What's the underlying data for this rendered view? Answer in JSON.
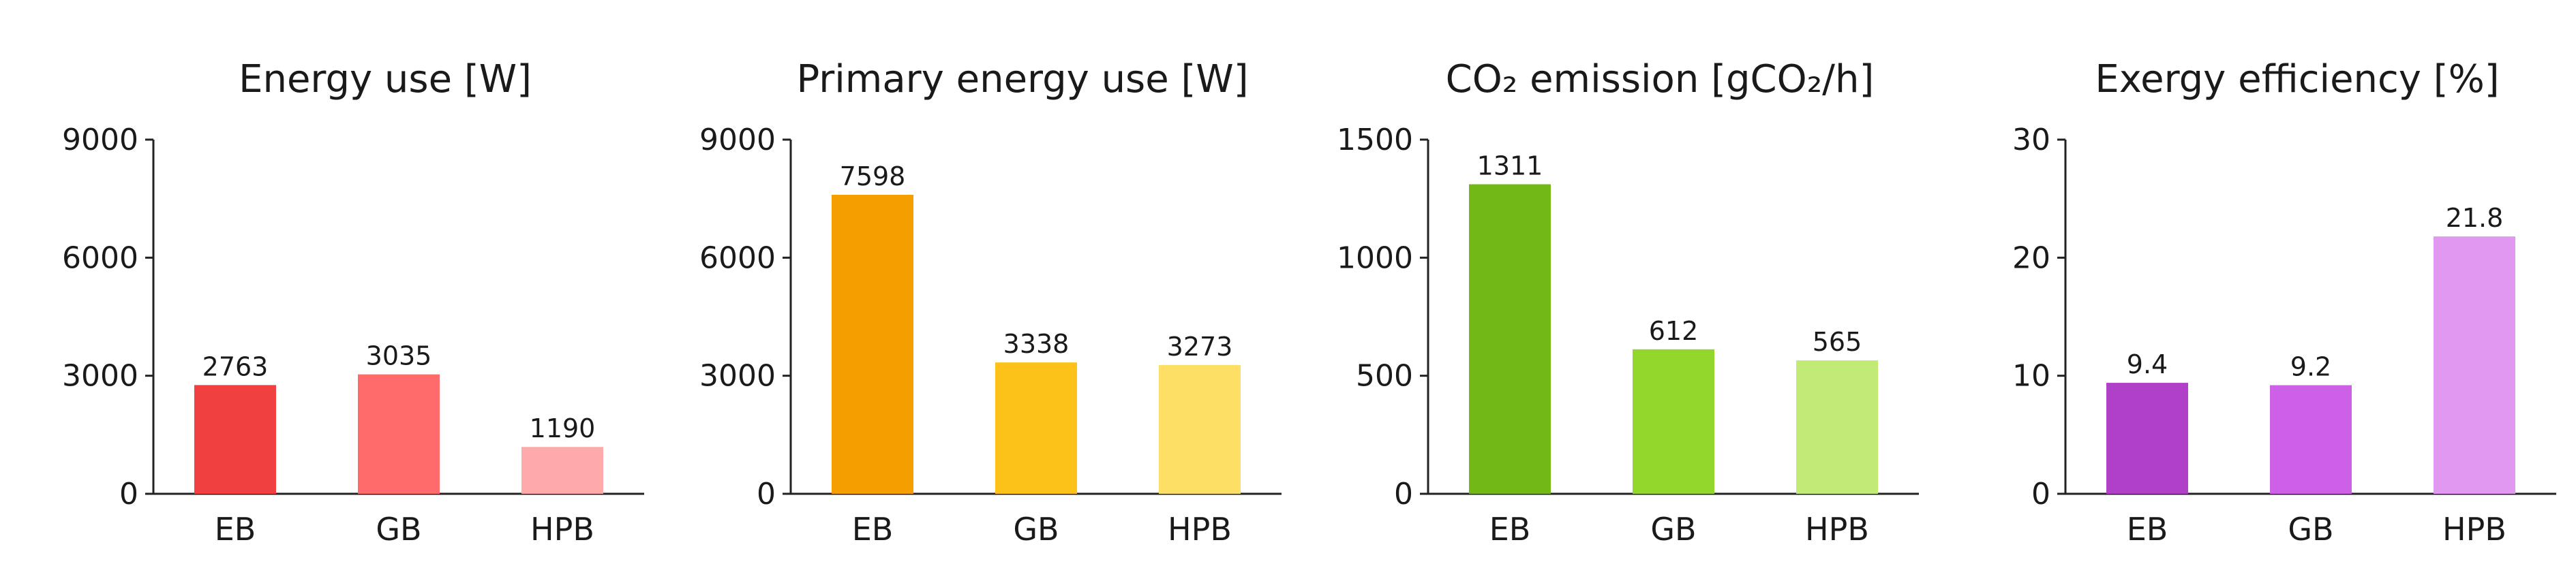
{
  "chart_data": [
    {
      "type": "bar",
      "title": "Energy use [W]",
      "categories": [
        "EB",
        "GB",
        "HPB"
      ],
      "values": [
        2763,
        3035,
        1190
      ],
      "value_labels": [
        "2763",
        "3035",
        "1190"
      ],
      "ylim": [
        0,
        9000
      ],
      "yticks": [
        "0",
        "3000",
        "6000",
        "9000"
      ],
      "colors": [
        "#f04040",
        "#ff6a6a",
        "#ffaaaa"
      ],
      "grid": false
    },
    {
      "type": "bar",
      "title": "Primary energy use [W]",
      "categories": [
        "EB",
        "GB",
        "HPB"
      ],
      "values": [
        7598,
        3338,
        3273
      ],
      "value_labels": [
        "7598",
        "3338",
        "3273"
      ],
      "ylim": [
        0,
        9000
      ],
      "yticks": [
        "0",
        "3000",
        "6000",
        "9000"
      ],
      "colors": [
        "#f59e00",
        "#fcc21a",
        "#fddf66"
      ],
      "grid": false
    },
    {
      "type": "bar",
      "title": "CO₂ emission [gCO₂/h]",
      "categories": [
        "EB",
        "GB",
        "HPB"
      ],
      "values": [
        1311,
        612,
        565
      ],
      "value_labels": [
        "1311",
        "612",
        "565"
      ],
      "ylim": [
        0,
        1500
      ],
      "yticks": [
        "0",
        "500",
        "1000",
        "1500"
      ],
      "colors": [
        "#72b817",
        "#93d62c",
        "#c2ea76"
      ],
      "grid": false
    },
    {
      "type": "bar",
      "title": "Exergy efficiency [%]",
      "categories": [
        "EB",
        "GB",
        "HPB"
      ],
      "values": [
        9.4,
        9.2,
        21.8
      ],
      "value_labels": [
        "9.4",
        "9.2",
        "21.8"
      ],
      "ylim": [
        0,
        30
      ],
      "yticks": [
        "0",
        "10",
        "20",
        "30"
      ],
      "colors": [
        "#b040c8",
        "#ce60e8",
        "#e198f0"
      ],
      "grid": false
    }
  ]
}
